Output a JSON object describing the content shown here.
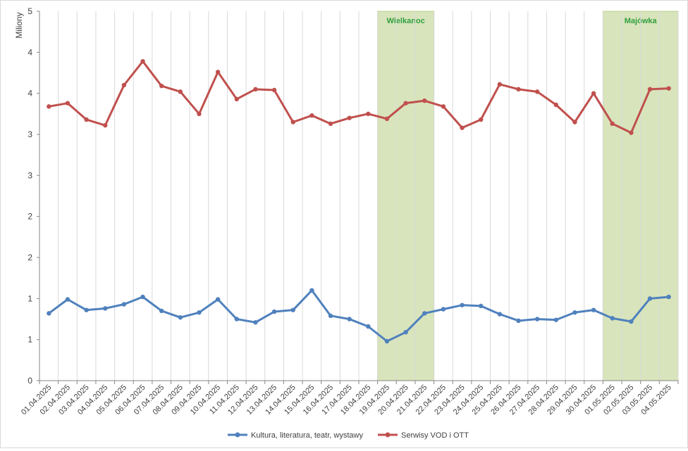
{
  "chart_data": {
    "type": "line",
    "ylabel": "Miliony",
    "ylim": [
      0,
      4.5
    ],
    "y_tick_values": [
      0,
      0.5,
      1,
      1.5,
      2,
      2.5,
      3,
      3.5,
      4,
      4.5
    ],
    "y_tick_labels": [
      "0",
      "1",
      "1",
      "2",
      "2",
      "3",
      "3",
      "4",
      "4",
      "5"
    ],
    "grid": "vertical",
    "legend_position": "bottom",
    "categories": [
      "01.04.2025",
      "02.04.2025",
      "03.04.2025",
      "04.04.2025",
      "05.04.2025",
      "06.04.2025",
      "07.04.2025",
      "08.04.2025",
      "09.04.2025",
      "10.04.2025",
      "11.04.2025",
      "12.04.2025",
      "13.04.2025",
      "14.04.2025",
      "15.04.2025",
      "16.04.2025",
      "17.04.2025",
      "18.04.2025",
      "19.04.2025",
      "20.04.2025",
      "21.04.2025",
      "22.04.2025",
      "23.04.2025",
      "24.04.2025",
      "25.04.2025",
      "26.04.2025",
      "27.04.2025",
      "28.04.2025",
      "29.04.2025",
      "30.04.2025",
      "01.05.2025",
      "02.05.2025",
      "03.05.2025",
      "04.05.2025"
    ],
    "series": [
      {
        "name": "Kultura, literatura, teatr, wystawy",
        "color": "#4f81bd",
        "values": [
          0.82,
          0.99,
          0.86,
          0.88,
          0.93,
          1.02,
          0.85,
          0.77,
          0.83,
          0.99,
          0.75,
          0.71,
          0.84,
          0.86,
          1.1,
          0.79,
          0.75,
          0.66,
          0.48,
          0.59,
          0.82,
          0.87,
          0.92,
          0.91,
          0.81,
          0.73,
          0.75,
          0.74,
          0.83,
          0.86,
          0.76,
          0.72,
          1.0,
          1.02
        ]
      },
      {
        "name": "Serwisy VOD i OTT",
        "color": "#c0504d",
        "values": [
          3.34,
          3.38,
          3.18,
          3.11,
          3.6,
          3.89,
          3.59,
          3.52,
          3.25,
          3.76,
          3.43,
          3.55,
          3.54,
          3.15,
          3.23,
          3.13,
          3.2,
          3.25,
          3.19,
          3.38,
          3.41,
          3.34,
          3.08,
          3.18,
          3.61,
          3.55,
          3.52,
          3.36,
          3.15,
          3.5,
          3.13,
          3.02,
          3.55,
          3.56
        ]
      }
    ],
    "annotations": [
      {
        "label": "Wielkanoc",
        "start": "19.04.2025",
        "end": "21.04.2025",
        "color": "#d8e4bc"
      },
      {
        "label": "Majówka",
        "start": "01.05.2025",
        "end": "04.05.2025",
        "color": "#d8e4bc"
      }
    ]
  }
}
